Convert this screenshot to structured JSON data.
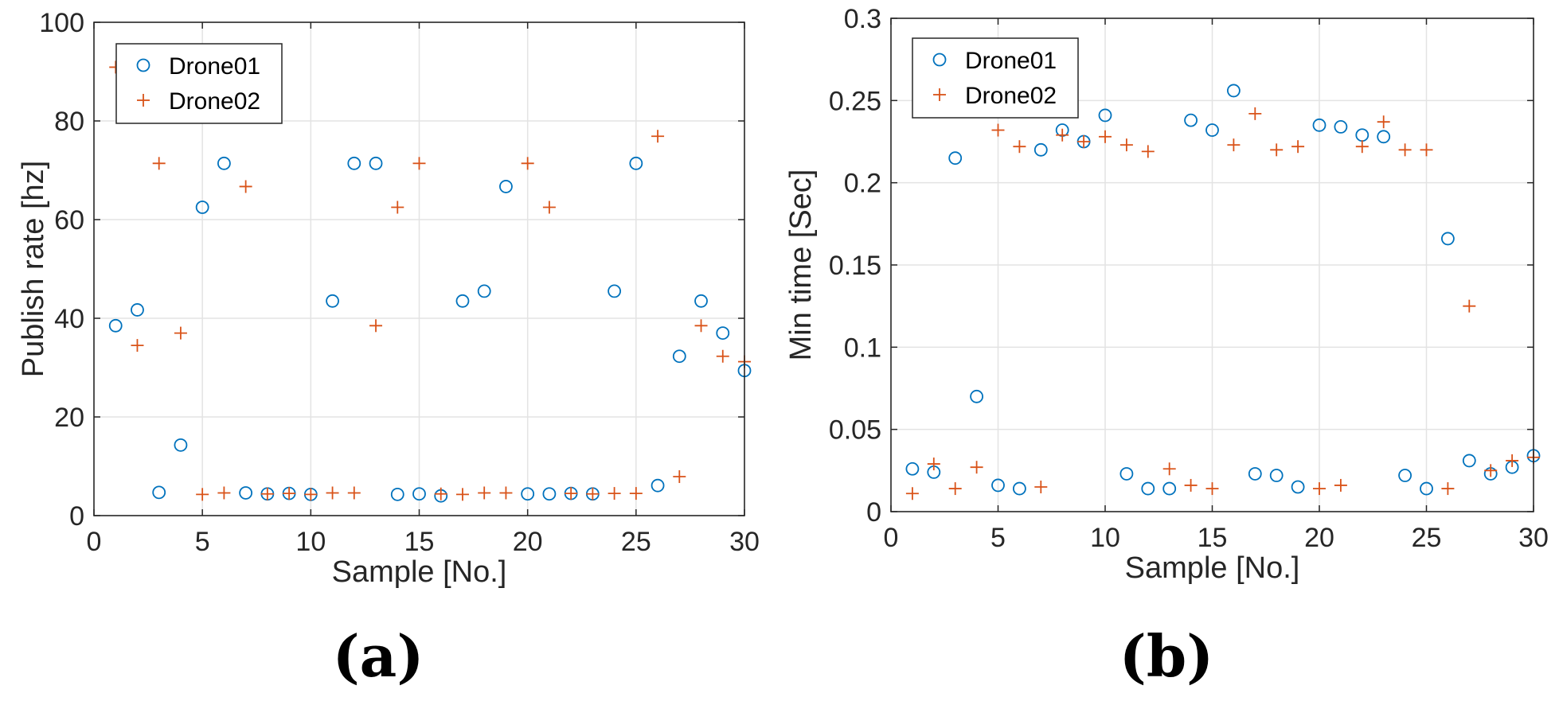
{
  "chart_data": [
    {
      "type": "scatter",
      "panel_label": "(a)",
      "xlabel": "Sample [No.]",
      "ylabel": "Publish rate [hz]",
      "xlim": [
        0,
        30
      ],
      "ylim": [
        0,
        100
      ],
      "xticks": [
        0,
        5,
        10,
        15,
        20,
        25,
        30
      ],
      "yticks": [
        0,
        20,
        40,
        60,
        80,
        100
      ],
      "xtick_labels": [
        "0",
        "5",
        "10",
        "15",
        "20",
        "25",
        "30"
      ],
      "ytick_labels": [
        "0",
        "20",
        "40",
        "60",
        "80",
        "100"
      ],
      "grid": true,
      "legend_position": "top-left",
      "series": [
        {
          "name": "Drone01",
          "marker": "circle",
          "color": "#0072BD",
          "x": [
            1,
            2,
            3,
            4,
            5,
            6,
            7,
            8,
            9,
            10,
            11,
            12,
            13,
            14,
            15,
            16,
            17,
            18,
            19,
            20,
            21,
            22,
            23,
            24,
            25,
            26,
            27,
            28,
            29,
            30
          ],
          "y": [
            38.5,
            41.7,
            4.7,
            14.3,
            62.5,
            71.4,
            4.6,
            4.4,
            4.5,
            4.3,
            43.5,
            71.4,
            71.4,
            4.3,
            4.4,
            4.0,
            43.5,
            45.5,
            66.7,
            4.4,
            4.4,
            4.5,
            4.4,
            45.5,
            71.4,
            6.1,
            32.3,
            43.5,
            37.0,
            29.4
          ]
        },
        {
          "name": "Drone02",
          "marker": "plus",
          "color": "#D95319",
          "x": [
            1,
            2,
            3,
            4,
            5,
            6,
            7,
            8,
            9,
            10,
            11,
            12,
            13,
            14,
            15,
            16,
            17,
            18,
            19,
            20,
            21,
            22,
            23,
            24,
            25,
            26,
            27,
            28,
            29,
            30
          ],
          "y": [
            90.9,
            34.5,
            71.4,
            37.0,
            4.3,
            4.6,
            66.7,
            4.4,
            4.5,
            4.3,
            4.6,
            4.6,
            38.5,
            62.5,
            71.4,
            4.4,
            4.3,
            4.6,
            4.6,
            71.4,
            62.5,
            4.5,
            4.4,
            4.5,
            4.5,
            76.9,
            7.9,
            38.5,
            32.3,
            31.2
          ]
        }
      ]
    },
    {
      "type": "scatter",
      "panel_label": "(b)",
      "xlabel": "Sample [No.]",
      "ylabel": "Min time [Sec]",
      "xlim": [
        0,
        30
      ],
      "ylim": [
        0,
        0.3
      ],
      "xticks": [
        0,
        5,
        10,
        15,
        20,
        25,
        30
      ],
      "yticks": [
        0,
        0.05,
        0.1,
        0.15,
        0.2,
        0.25,
        0.3
      ],
      "xtick_labels": [
        "0",
        "5",
        "10",
        "15",
        "20",
        "25",
        "30"
      ],
      "ytick_labels": [
        "0",
        "0.05",
        "0.1",
        "0.15",
        "0.2",
        "0.25",
        "0.3"
      ],
      "grid": true,
      "legend_position": "top-left",
      "series": [
        {
          "name": "Drone01",
          "marker": "circle",
          "color": "#0072BD",
          "x": [
            1,
            2,
            3,
            4,
            5,
            6,
            7,
            8,
            9,
            10,
            11,
            12,
            13,
            14,
            15,
            16,
            17,
            18,
            19,
            20,
            21,
            22,
            23,
            24,
            25,
            26,
            27,
            28,
            29,
            30
          ],
          "y": [
            0.026,
            0.024,
            0.215,
            0.07,
            0.016,
            0.014,
            0.22,
            0.232,
            0.225,
            0.241,
            0.023,
            0.014,
            0.014,
            0.238,
            0.232,
            0.256,
            0.023,
            0.022,
            0.015,
            0.235,
            0.234,
            0.229,
            0.228,
            0.022,
            0.014,
            0.166,
            0.031,
            0.023,
            0.027,
            0.034
          ]
        },
        {
          "name": "Drone02",
          "marker": "plus",
          "color": "#D95319",
          "x": [
            1,
            2,
            3,
            4,
            5,
            6,
            7,
            8,
            9,
            10,
            11,
            12,
            13,
            14,
            15,
            16,
            17,
            18,
            19,
            20,
            21,
            22,
            23,
            24,
            25,
            26,
            27,
            28,
            29,
            30
          ],
          "y": [
            0.011,
            0.029,
            0.014,
            0.027,
            0.232,
            0.222,
            0.015,
            0.229,
            0.225,
            0.228,
            0.223,
            0.219,
            0.026,
            0.016,
            0.014,
            0.223,
            0.242,
            0.22,
            0.222,
            0.014,
            0.016,
            0.222,
            0.237,
            0.22,
            0.22,
            0.014,
            0.125,
            0.025,
            0.031,
            0.033
          ]
        }
      ]
    }
  ]
}
